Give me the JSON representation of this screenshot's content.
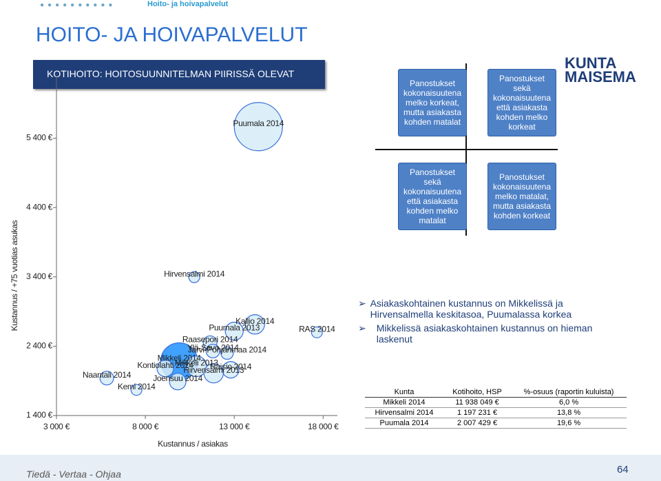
{
  "header": {
    "breadcrumb": "Hoito- ja hoivapalvelut",
    "title": "HOITO- JA HOIVAPALVELUT"
  },
  "chart_data": {
    "type": "scatter",
    "title": "KOTIHOITO: HOITOSUUNNITELMAN PIIRISSÄ OLEVAT",
    "x_label": "Kustannus / asiakas",
    "y_label": "Kustannus / +75 vuotias asukas",
    "labels": [
      "Puumala 2014",
      "Hirvensalmi 2014",
      "RAS 2014",
      "Kallio 2014",
      "Puumala 2013",
      "Raasepori 2014",
      "Ylä-Savo 2014",
      "Järvi-Pohjanmaa 2014",
      "Mikkeli 2014",
      "Kontiolahti 2014",
      "Mikkeli 2013",
      "Raisio 2014",
      "Hirvensalmi 2013",
      "Joensuu 2014",
      "Naantali 2014",
      "Kemi 2014"
    ],
    "x": [
      14357,
      10750,
      17650,
      14160,
      13000,
      11640,
      11800,
      12600,
      9900,
      9120,
      10870,
      12800,
      11840,
      9820,
      5830,
      7500
    ],
    "values": [
      5567,
      3396,
      2600,
      2715,
      2617,
      2450,
      2330,
      2300,
      2180,
      2080,
      2110,
      2060,
      2010,
      1890,
      1940,
      1770
    ],
    "sizes": [
      136,
      7,
      7,
      22,
      19,
      11,
      11,
      9,
      81,
      16,
      25,
      16,
      22,
      16,
      11,
      7
    ],
    "colors": [
      "#d6ecf8",
      "#d6ecf8",
      "#d6ecf8",
      "#d6ecf8",
      "#d6ecf8",
      "#d6ecf8",
      "#d6ecf8",
      "#d6ecf8",
      "#1e90ff",
      "#d6ecf8",
      "#d6ecf8",
      "#d6ecf8",
      "#d6ecf8",
      "#d6ecf8",
      "#d6ecf8",
      "#d6ecf8"
    ],
    "border_color": "#3a6fd8",
    "xlim": [
      3000,
      18800
    ],
    "ylim": [
      1400,
      6300
    ],
    "xticks": [
      {
        "value": 3000,
        "label": "3 000 €"
      },
      {
        "value": 8000,
        "label": "8 000 €"
      },
      {
        "value": 13000,
        "label": "13 000 €"
      },
      {
        "value": 18000,
        "label": "18 000 €"
      }
    ],
    "yticks": [
      {
        "value": 1400,
        "label": "1 400 €"
      },
      {
        "value": 2400,
        "label": "2 400 €"
      },
      {
        "value": 3400,
        "label": "3 400 €"
      },
      {
        "value": 4400,
        "label": "4 400 €"
      },
      {
        "value": 5400,
        "label": "5 400 €"
      }
    ]
  },
  "quadrants": [
    "Panostukset kokonaisuutena melko korkeat, mutta asiakasta kohden matalat",
    "Panostukset sekä kokonaisuutena että asiakasta kohden melko korkeat",
    "Panostukset sekä kokonaisuutena että asiakasta kohden melko matalat",
    "Panostukset kokonaisuutena melko matalat, mutta asiakasta kohden korkeat"
  ],
  "bullets": [
    "Asiakaskohtainen kustannus on Mikkelissä ja Hirvensalmella keskitasoa, Puumalassa korkea",
    "Mikkelissä asiakaskohtainen kustannus on hieman laskenut"
  ],
  "table": {
    "header": [
      "Kunta",
      "Kotihoito, HSP",
      "%-osuus (raportin kuluista)"
    ],
    "rows": [
      [
        "Mikkeli 2014",
        "11 938 049 €",
        "6,0 %"
      ],
      [
        "Hirvensalmi 2014",
        "1 197 231 €",
        "13,8 %"
      ],
      [
        "Puumala 2014",
        "2 007 429 €",
        "19,6 %"
      ]
    ]
  },
  "logo": "KUNTA MAISEMA",
  "footer": "Tiedä - Vertaa - Ohjaa",
  "page_number": "64"
}
